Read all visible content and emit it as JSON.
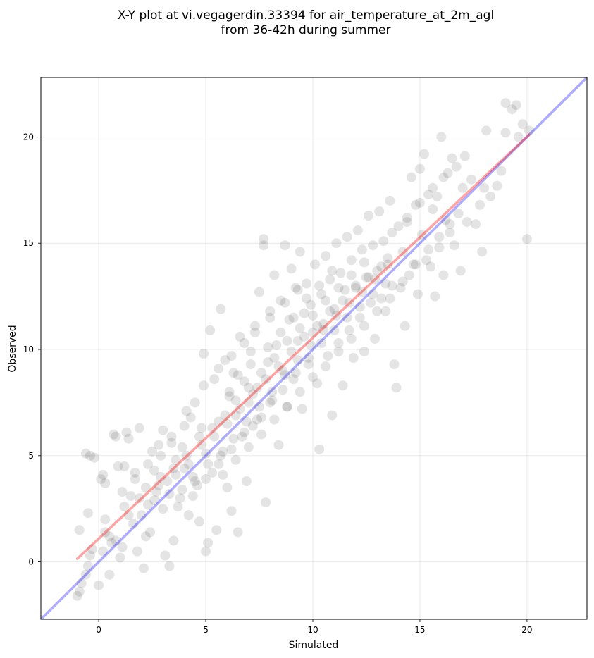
{
  "chart_data": {
    "type": "scatter",
    "title": [
      "X-Y plot at vi.vegagerdin.33394 for air_temperature_at_2m_agl",
      "from 36-42h during summer"
    ],
    "xlabel": "Simulated",
    "ylabel": "Observed",
    "xlim": [
      -2.7,
      22.8
    ],
    "ylim": [
      -2.7,
      22.8
    ],
    "xticks": [
      0,
      5,
      10,
      15,
      20
    ],
    "yticks": [
      0,
      5,
      10,
      15,
      20
    ],
    "grid": true,
    "point_color": "#404040",
    "point_alpha": 0.14,
    "points": [
      [
        -1.0,
        -1.6
      ],
      [
        -0.9,
        -1.4
      ],
      [
        -0.8,
        -1.0
      ],
      [
        -0.6,
        -0.6
      ],
      [
        -0.5,
        -0.2
      ],
      [
        -0.4,
        0.3
      ],
      [
        -0.3,
        0.6
      ],
      [
        -0.9,
        1.5
      ],
      [
        -0.5,
        2.3
      ],
      [
        -0.4,
        5.0
      ],
      [
        -0.2,
        4.9
      ],
      [
        -0.6,
        5.1
      ],
      [
        0.0,
        -1.1
      ],
      [
        0.2,
        0.5
      ],
      [
        0.3,
        1.4
      ],
      [
        0.1,
        3.9
      ],
      [
        0.2,
        4.1
      ],
      [
        0.3,
        3.7
      ],
      [
        0.5,
        -0.6
      ],
      [
        0.5,
        1.2
      ],
      [
        0.6,
        0.9
      ],
      [
        0.7,
        6.0
      ],
      [
        0.8,
        5.9
      ],
      [
        0.9,
        4.5
      ],
      [
        1.0,
        0.2
      ],
      [
        1.1,
        0.7
      ],
      [
        1.2,
        2.6
      ],
      [
        1.2,
        4.5
      ],
      [
        1.3,
        6.1
      ],
      [
        1.4,
        5.8
      ],
      [
        1.5,
        3.1
      ],
      [
        1.6,
        1.8
      ],
      [
        1.7,
        4.2
      ],
      [
        1.8,
        0.5
      ],
      [
        1.9,
        6.3
      ],
      [
        2.0,
        2.2
      ],
      [
        2.1,
        -0.3
      ],
      [
        2.2,
        3.5
      ],
      [
        2.3,
        4.6
      ],
      [
        2.4,
        1.4
      ],
      [
        2.5,
        5.2
      ],
      [
        2.6,
        2.9
      ],
      [
        2.7,
        3.3
      ],
      [
        2.8,
        5.5
      ],
      [
        2.9,
        4.0
      ],
      [
        3.0,
        6.2
      ],
      [
        3.1,
        0.3
      ],
      [
        3.2,
        3.8
      ],
      [
        3.3,
        -0.2
      ],
      [
        3.4,
        5.6
      ],
      [
        3.5,
        1.0
      ],
      [
        3.6,
        4.8
      ],
      [
        3.7,
        2.6
      ],
      [
        3.8,
        3.0
      ],
      [
        3.9,
        5.4
      ],
      [
        4.0,
        4.4
      ],
      [
        4.1,
        7.1
      ],
      [
        4.2,
        2.2
      ],
      [
        4.3,
        6.8
      ],
      [
        4.4,
        4.0
      ],
      [
        4.5,
        7.5
      ],
      [
        4.6,
        3.6
      ],
      [
        4.7,
        1.9
      ],
      [
        4.8,
        6.3
      ],
      [
        4.9,
        9.8
      ],
      [
        5.0,
        5.1
      ],
      [
        5.0,
        0.5
      ],
      [
        5.1,
        0.9
      ],
      [
        5.2,
        10.9
      ],
      [
        5.3,
        4.2
      ],
      [
        5.4,
        8.6
      ],
      [
        5.5,
        1.5
      ],
      [
        5.6,
        6.6
      ],
      [
        5.7,
        11.9
      ],
      [
        5.8,
        5.2
      ],
      [
        5.9,
        9.5
      ],
      [
        6.0,
        3.5
      ],
      [
        6.1,
        7.8
      ],
      [
        6.2,
        2.4
      ],
      [
        6.3,
        8.9
      ],
      [
        6.4,
        6.9
      ],
      [
        6.5,
        1.4
      ],
      [
        6.6,
        10.6
      ],
      [
        6.7,
        5.9
      ],
      [
        6.8,
        8.5
      ],
      [
        6.9,
        3.8
      ],
      [
        7.0,
        7.5
      ],
      [
        7.1,
        9.9
      ],
      [
        7.2,
        6.4
      ],
      [
        7.3,
        11.1
      ],
      [
        7.4,
        8.2
      ],
      [
        7.5,
        12.7
      ],
      [
        7.6,
        6.8
      ],
      [
        7.7,
        15.2
      ],
      [
        7.7,
        14.9
      ],
      [
        7.8,
        2.8
      ],
      [
        7.9,
        9.4
      ],
      [
        8.0,
        11.8
      ],
      [
        8.1,
        7.6
      ],
      [
        8.2,
        13.5
      ],
      [
        8.3,
        10.2
      ],
      [
        8.4,
        5.5
      ],
      [
        8.5,
        12.3
      ],
      [
        8.6,
        9.0
      ],
      [
        8.7,
        14.9
      ],
      [
        8.8,
        7.3
      ],
      [
        8.9,
        11.4
      ],
      [
        9.0,
        13.8
      ],
      [
        9.1,
        8.6
      ],
      [
        9.2,
        12.9
      ],
      [
        9.3,
        10.4
      ],
      [
        9.4,
        14.6
      ],
      [
        9.5,
        7.2
      ],
      [
        9.6,
        11.7
      ],
      [
        9.7,
        13.1
      ],
      [
        9.8,
        9.3
      ],
      [
        9.9,
        12.1
      ],
      [
        10.0,
        10.8
      ],
      [
        10.1,
        14.0
      ],
      [
        10.2,
        8.4
      ],
      [
        10.3,
        5.3
      ],
      [
        10.4,
        12.6
      ],
      [
        10.5,
        11.2
      ],
      [
        10.6,
        14.4
      ],
      [
        10.7,
        9.7
      ],
      [
        10.8,
        13.3
      ],
      [
        10.9,
        6.9
      ],
      [
        11.0,
        11.9
      ],
      [
        11.1,
        15.0
      ],
      [
        11.2,
        10.3
      ],
      [
        11.3,
        13.6
      ],
      [
        11.4,
        8.3
      ],
      [
        11.5,
        12.8
      ],
      [
        11.6,
        15.3
      ],
      [
        11.7,
        10.9
      ],
      [
        11.8,
        14.2
      ],
      [
        11.9,
        9.6
      ],
      [
        12.0,
        13.0
      ],
      [
        12.1,
        15.6
      ],
      [
        12.2,
        11.5
      ],
      [
        12.3,
        14.7
      ],
      [
        12.4,
        9.9
      ],
      [
        12.5,
        13.4
      ],
      [
        12.6,
        16.3
      ],
      [
        12.7,
        12.2
      ],
      [
        12.8,
        14.9
      ],
      [
        12.9,
        10.5
      ],
      [
        13.0,
        13.7
      ],
      [
        13.1,
        16.5
      ],
      [
        13.2,
        12.4
      ],
      [
        13.3,
        15.1
      ],
      [
        13.4,
        11.8
      ],
      [
        13.5,
        14.3
      ],
      [
        13.6,
        17.0
      ],
      [
        13.7,
        13.0
      ],
      [
        13.8,
        9.3
      ],
      [
        13.9,
        8.2
      ],
      [
        14.0,
        15.8
      ],
      [
        14.1,
        12.9
      ],
      [
        14.2,
        14.6
      ],
      [
        14.3,
        11.1
      ],
      [
        14.4,
        16.0
      ],
      [
        14.5,
        13.5
      ],
      [
        14.6,
        18.1
      ],
      [
        14.7,
        14.0
      ],
      [
        14.8,
        16.8
      ],
      [
        14.9,
        12.6
      ],
      [
        15.0,
        18.5
      ],
      [
        15.1,
        15.4
      ],
      [
        15.2,
        19.2
      ],
      [
        15.3,
        14.2
      ],
      [
        15.4,
        17.3
      ],
      [
        15.5,
        13.9
      ],
      [
        15.6,
        16.6
      ],
      [
        15.7,
        12.5
      ],
      [
        15.8,
        17.2
      ],
      [
        15.9,
        14.8
      ],
      [
        16.0,
        20.0
      ],
      [
        16.1,
        13.5
      ],
      [
        16.2,
        16.1
      ],
      [
        16.3,
        18.3
      ],
      [
        16.4,
        15.5
      ],
      [
        16.5,
        19.0
      ],
      [
        16.6,
        14.9
      ],
      [
        16.7,
        18.6
      ],
      [
        16.8,
        16.4
      ],
      [
        16.9,
        13.7
      ],
      [
        17.0,
        17.6
      ],
      [
        17.1,
        19.1
      ],
      [
        17.2,
        16.0
      ],
      [
        17.4,
        18.0
      ],
      [
        17.6,
        15.9
      ],
      [
        17.8,
        16.8
      ],
      [
        17.9,
        14.6
      ],
      [
        18.0,
        17.6
      ],
      [
        18.1,
        20.3
      ],
      [
        18.3,
        17.2
      ],
      [
        18.6,
        17.7
      ],
      [
        18.8,
        18.4
      ],
      [
        19.0,
        20.2
      ],
      [
        19.0,
        21.6
      ],
      [
        19.3,
        21.3
      ],
      [
        19.5,
        21.5
      ],
      [
        19.6,
        20.0
      ],
      [
        19.8,
        20.6
      ],
      [
        20.0,
        15.2
      ],
      [
        20.1,
        20.3
      ],
      [
        0.3,
        2.0
      ],
      [
        0.8,
        1.0
      ],
      [
        1.4,
        2.2
      ],
      [
        1.9,
        3.0
      ],
      [
        2.2,
        1.2
      ],
      [
        2.6,
        4.3
      ],
      [
        3.0,
        2.5
      ],
      [
        3.3,
        3.2
      ],
      [
        3.6,
        4.1
      ],
      [
        3.9,
        3.4
      ],
      [
        4.2,
        4.6
      ],
      [
        4.5,
        3.8
      ],
      [
        4.8,
        5.5
      ],
      [
        5.1,
        4.6
      ],
      [
        5.4,
        5.9
      ],
      [
        5.7,
        5.0
      ],
      [
        6.0,
        6.5
      ],
      [
        6.3,
        5.8
      ],
      [
        6.6,
        7.2
      ],
      [
        6.9,
        6.6
      ],
      [
        7.2,
        7.9
      ],
      [
        7.5,
        7.3
      ],
      [
        7.8,
        8.6
      ],
      [
        8.1,
        8.0
      ],
      [
        8.4,
        9.2
      ],
      [
        8.7,
        8.8
      ],
      [
        9.0,
        9.9
      ],
      [
        9.3,
        9.5
      ],
      [
        9.6,
        10.6
      ],
      [
        9.9,
        10.2
      ],
      [
        10.2,
        11.1
      ],
      [
        10.5,
        10.9
      ],
      [
        10.8,
        11.8
      ],
      [
        11.1,
        11.6
      ],
      [
        11.4,
        12.3
      ],
      [
        11.7,
        12.2
      ],
      [
        12.0,
        12.9
      ],
      [
        12.3,
        12.7
      ],
      [
        12.6,
        13.4
      ],
      [
        12.9,
        13.3
      ],
      [
        13.2,
        13.9
      ],
      [
        13.5,
        14.0
      ],
      [
        2.8,
        3.6
      ],
      [
        3.5,
        4.4
      ],
      [
        4.1,
        5.0
      ],
      [
        4.7,
        5.9
      ],
      [
        5.3,
        6.3
      ],
      [
        5.9,
        6.9
      ],
      [
        6.4,
        7.6
      ],
      [
        7.0,
        8.2
      ],
      [
        7.6,
        8.9
      ],
      [
        8.2,
        9.6
      ],
      [
        8.8,
        10.4
      ],
      [
        9.4,
        11.0
      ],
      [
        10.0,
        11.6
      ],
      [
        10.6,
        12.3
      ],
      [
        11.2,
        12.9
      ],
      [
        11.8,
        13.5
      ],
      [
        12.4,
        14.1
      ],
      [
        4.4,
        3.1
      ],
      [
        5.0,
        3.9
      ],
      [
        5.6,
        4.6
      ],
      [
        6.2,
        5.3
      ],
      [
        6.8,
        6.1
      ],
      [
        7.4,
        6.7
      ],
      [
        8.0,
        7.5
      ],
      [
        8.6,
        8.1
      ],
      [
        9.2,
        8.9
      ],
      [
        9.8,
        9.6
      ],
      [
        10.4,
        10.3
      ],
      [
        11.0,
        10.9
      ],
      [
        11.6,
        11.5
      ],
      [
        12.2,
        12.0
      ],
      [
        12.8,
        12.6
      ],
      [
        13.4,
        13.1
      ],
      [
        6.1,
        8.0
      ],
      [
        6.5,
        8.8
      ],
      [
        7.1,
        9.3
      ],
      [
        7.9,
        10.1
      ],
      [
        8.5,
        10.8
      ],
      [
        9.1,
        11.5
      ],
      [
        9.7,
        12.4
      ],
      [
        10.3,
        13.0
      ],
      [
        10.9,
        13.7
      ],
      [
        5.8,
        4.1
      ],
      [
        6.4,
        4.8
      ],
      [
        7.0,
        5.4
      ],
      [
        7.6,
        6.0
      ],
      [
        8.2,
        6.7
      ],
      [
        8.8,
        7.3
      ],
      [
        9.4,
        8.0
      ],
      [
        10.0,
        8.7
      ],
      [
        10.6,
        9.2
      ],
      [
        11.2,
        9.9
      ],
      [
        11.8,
        10.5
      ],
      [
        12.4,
        11.1
      ],
      [
        13.0,
        11.8
      ],
      [
        13.6,
        12.4
      ],
      [
        4.9,
        8.3
      ],
      [
        5.6,
        9.1
      ],
      [
        6.2,
        9.7
      ],
      [
        6.8,
        10.3
      ],
      [
        7.3,
        10.8
      ],
      [
        8.0,
        11.5
      ],
      [
        8.7,
        12.2
      ],
      [
        9.3,
        12.8
      ],
      [
        1.1,
        3.3
      ],
      [
        1.7,
        3.9
      ],
      [
        2.3,
        2.7
      ],
      [
        2.9,
        5.0
      ],
      [
        3.4,
        5.9
      ],
      [
        4.0,
        6.4
      ],
      [
        14.2,
        13.2
      ],
      [
        14.8,
        14.0
      ],
      [
        15.4,
        14.7
      ],
      [
        15.9,
        15.3
      ],
      [
        16.4,
        15.9
      ],
      [
        13.7,
        15.5
      ],
      [
        14.4,
        16.2
      ],
      [
        15.0,
        16.9
      ],
      [
        15.6,
        17.6
      ],
      [
        16.1,
        18.1
      ]
    ],
    "lines": [
      {
        "name": "",
        "color": "#0000ff",
        "alpha": 0.32,
        "width": 3.6,
        "points": [
          [
            -2.7,
            -2.7
          ],
          [
            22.8,
            22.8
          ]
        ]
      },
      {
        "name": "",
        "color": "#ff0000",
        "alpha": 0.36,
        "width": 3.6,
        "points": [
          [
            -1.0,
            0.15
          ],
          [
            20.1,
            20.1
          ]
        ]
      }
    ]
  }
}
